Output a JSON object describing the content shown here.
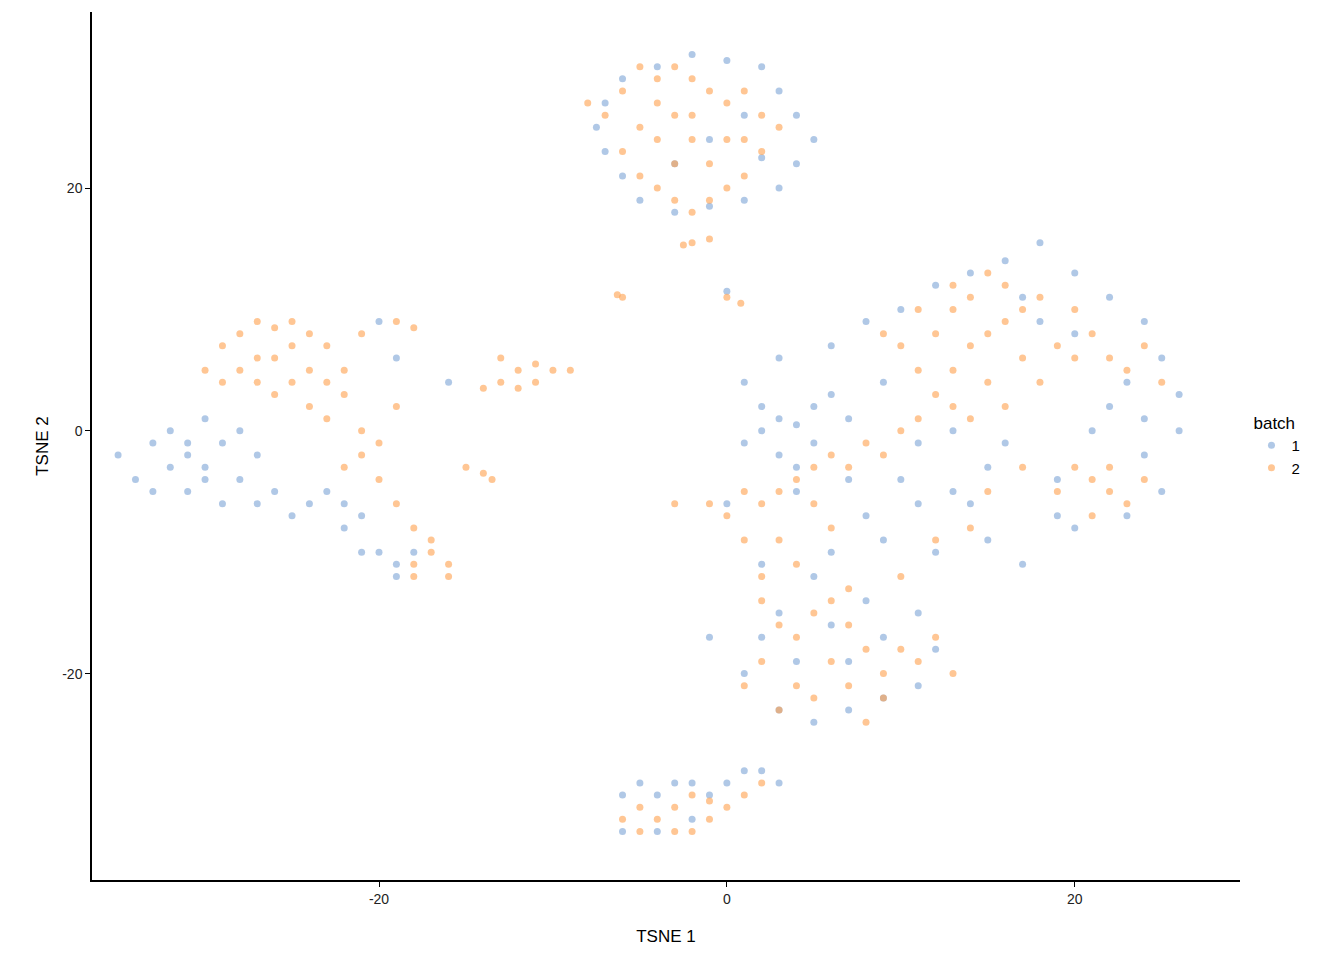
{
  "chart_data": {
    "type": "scatter",
    "x_label": "TSNE 1",
    "y_label": "TSNE 2",
    "legend_title": "batch",
    "legend": "right",
    "grid": false,
    "xlim": [
      -36.5,
      29.5
    ],
    "ylim": [
      -37,
      34.5
    ],
    "xticks": [
      -20,
      0,
      20
    ],
    "yticks": [
      -20,
      0,
      20
    ],
    "series": [
      {
        "name": "1",
        "color": "#7ba3d6",
        "marker": "circle",
        "points": [
          [
            -7,
            27
          ],
          [
            -6,
            29
          ],
          [
            -4,
            30
          ],
          [
            -2,
            31
          ],
          [
            0,
            30.5
          ],
          [
            2,
            30
          ],
          [
            3,
            28
          ],
          [
            4,
            26
          ],
          [
            5,
            24
          ],
          [
            4,
            22
          ],
          [
            3,
            20
          ],
          [
            1,
            19
          ],
          [
            -1,
            18.5
          ],
          [
            -3,
            18
          ],
          [
            -5,
            19
          ],
          [
            -6,
            21
          ],
          [
            -7,
            23
          ],
          [
            -7.5,
            25
          ],
          [
            -1,
            24
          ],
          [
            1,
            26
          ],
          [
            -3,
            22
          ],
          [
            2,
            22.5
          ],
          [
            -35,
            -2
          ],
          [
            -34,
            -4
          ],
          [
            -33,
            -1
          ],
          [
            -33,
            -5
          ],
          [
            -32,
            0
          ],
          [
            -32,
            -3
          ],
          [
            -31,
            -2
          ],
          [
            -31,
            -5
          ],
          [
            -30,
            1
          ],
          [
            -30,
            -3
          ],
          [
            -29,
            -1
          ],
          [
            -29,
            -6
          ],
          [
            -28,
            0
          ],
          [
            -28,
            -4
          ],
          [
            -27,
            -2
          ],
          [
            -27,
            -6
          ],
          [
            -26,
            -5
          ],
          [
            -25,
            -7
          ],
          [
            -24,
            -6
          ],
          [
            -23,
            -5
          ],
          [
            -22,
            -6
          ],
          [
            -22,
            -8
          ],
          [
            -21,
            -7
          ],
          [
            -20,
            -10
          ],
          [
            -19,
            -11
          ],
          [
            -18,
            -10
          ],
          [
            -19,
            -12
          ],
          [
            -21,
            -10
          ],
          [
            -20,
            9
          ],
          [
            -19,
            6
          ],
          [
            -30,
            -4
          ],
          [
            -31,
            -1
          ],
          [
            -16,
            4
          ],
          [
            0,
            11.5
          ],
          [
            0,
            -6
          ],
          [
            1,
            -1
          ],
          [
            2,
            0
          ],
          [
            3,
            1
          ],
          [
            3,
            -2
          ],
          [
            4,
            0.5
          ],
          [
            5,
            2
          ],
          [
            5,
            -1
          ],
          [
            6,
            3
          ],
          [
            2,
            2
          ],
          [
            4,
            -3
          ],
          [
            1,
            4
          ],
          [
            3,
            6
          ],
          [
            6,
            7
          ],
          [
            8,
            9
          ],
          [
            10,
            10
          ],
          [
            9,
            4
          ],
          [
            12,
            12
          ],
          [
            14,
            13
          ],
          [
            16,
            14
          ],
          [
            18,
            15.5
          ],
          [
            20,
            13
          ],
          [
            22,
            11
          ],
          [
            24,
            9
          ],
          [
            25,
            6
          ],
          [
            26,
            3
          ],
          [
            26,
            0
          ],
          [
            24,
            -2
          ],
          [
            25,
            -5
          ],
          [
            23,
            -7
          ],
          [
            20,
            -8
          ],
          [
            22,
            2
          ],
          [
            23,
            4
          ],
          [
            21,
            0
          ],
          [
            24,
            1
          ],
          [
            19,
            -4
          ],
          [
            18,
            9
          ],
          [
            20,
            8
          ],
          [
            17,
            11
          ],
          [
            15,
            -3
          ],
          [
            13,
            -5
          ],
          [
            11,
            -6
          ],
          [
            10,
            -4
          ],
          [
            8,
            -7
          ],
          [
            9,
            -9
          ],
          [
            6,
            -10
          ],
          [
            5,
            -12
          ],
          [
            3,
            -15
          ],
          [
            2,
            -17
          ],
          [
            1,
            -20
          ],
          [
            3,
            -23
          ],
          [
            5,
            -24
          ],
          [
            7,
            -23
          ],
          [
            9,
            -22
          ],
          [
            11,
            -21
          ],
          [
            12,
            -18
          ],
          [
            11,
            -15
          ],
          [
            8,
            -14
          ],
          [
            6,
            -16
          ],
          [
            4,
            -19
          ],
          [
            7,
            -19
          ],
          [
            9,
            -17
          ],
          [
            12,
            -10
          ],
          [
            15,
            -9
          ],
          [
            17,
            -11
          ],
          [
            19,
            -7
          ],
          [
            14,
            -6
          ],
          [
            7,
            -4
          ],
          [
            4,
            -5
          ],
          [
            -1,
            -17
          ],
          [
            2,
            -11
          ],
          [
            11,
            -1
          ],
          [
            13,
            0
          ],
          [
            16,
            -1
          ],
          [
            7,
            1
          ],
          [
            -6,
            -30
          ],
          [
            -5,
            -29
          ],
          [
            -4,
            -30
          ],
          [
            -6,
            -33
          ],
          [
            -3,
            -29
          ],
          [
            -2,
            -29
          ],
          [
            -1,
            -30
          ],
          [
            0,
            -29
          ],
          [
            1,
            -28
          ],
          [
            2,
            -28
          ],
          [
            3,
            -29
          ],
          [
            -4,
            -33
          ],
          [
            -2,
            -32
          ]
        ]
      },
      {
        "name": "2",
        "color": "#ffa04d",
        "marker": "circle",
        "points": [
          [
            -8,
            27
          ],
          [
            -7,
            26
          ],
          [
            -6,
            28
          ],
          [
            -5,
            30
          ],
          [
            -4,
            29
          ],
          [
            -3,
            30
          ],
          [
            -2,
            29
          ],
          [
            -1,
            28
          ],
          [
            0,
            27
          ],
          [
            1,
            28
          ],
          [
            2,
            26
          ],
          [
            3,
            25
          ],
          [
            2,
            23
          ],
          [
            1,
            21
          ],
          [
            0,
            20
          ],
          [
            -1,
            19
          ],
          [
            -2,
            18
          ],
          [
            -3,
            19
          ],
          [
            -4,
            20
          ],
          [
            -5,
            21
          ],
          [
            -6,
            23
          ],
          [
            -5,
            25
          ],
          [
            -4,
            27
          ],
          [
            -3,
            26
          ],
          [
            -2,
            24
          ],
          [
            -1,
            22
          ],
          [
            0,
            24
          ],
          [
            -3,
            22
          ],
          [
            -4,
            24
          ],
          [
            -2,
            26
          ],
          [
            1,
            24
          ],
          [
            -2,
            15.5
          ],
          [
            -1,
            15.8
          ],
          [
            -2.5,
            15.3
          ],
          [
            -6,
            11
          ],
          [
            -6.3,
            11.2
          ],
          [
            0.8,
            10.5
          ],
          [
            0,
            11
          ],
          [
            -30,
            5
          ],
          [
            -29,
            7
          ],
          [
            -28,
            8
          ],
          [
            -27,
            9
          ],
          [
            -26,
            8.5
          ],
          [
            -25,
            9
          ],
          [
            -24,
            8
          ],
          [
            -23,
            7
          ],
          [
            -22,
            5
          ],
          [
            -22,
            3
          ],
          [
            -23,
            1
          ],
          [
            -24,
            2
          ],
          [
            -25,
            4
          ],
          [
            -26,
            6
          ],
          [
            -27,
            4
          ],
          [
            -28,
            5
          ],
          [
            -29,
            4
          ],
          [
            -25,
            7
          ],
          [
            -24,
            5
          ],
          [
            -26,
            3
          ],
          [
            -27,
            6
          ],
          [
            -23,
            4
          ],
          [
            -21,
            0
          ],
          [
            -21,
            -2
          ],
          [
            -22,
            -3
          ],
          [
            -20,
            -4
          ],
          [
            -20,
            -1
          ],
          [
            -19,
            2
          ],
          [
            -21,
            8
          ],
          [
            -19,
            9
          ],
          [
            -18,
            8.5
          ],
          [
            -19,
            -6
          ],
          [
            -18,
            -8
          ],
          [
            -18,
            -11
          ],
          [
            -17,
            -10
          ],
          [
            -16,
            -11
          ],
          [
            -16,
            -12
          ],
          [
            -18,
            -12
          ],
          [
            -17,
            -9
          ],
          [
            -14,
            3.5
          ],
          [
            -13,
            4
          ],
          [
            -12,
            5
          ],
          [
            -11,
            5.5
          ],
          [
            -10,
            5
          ],
          [
            -9,
            5
          ],
          [
            -13,
            6
          ],
          [
            -11,
            4
          ],
          [
            -12,
            3.5
          ],
          [
            -15,
            -3
          ],
          [
            -14,
            -3.5
          ],
          [
            -13.5,
            -4
          ],
          [
            12,
            3
          ],
          [
            13,
            5
          ],
          [
            14,
            7
          ],
          [
            15,
            8
          ],
          [
            16,
            9
          ],
          [
            17,
            10
          ],
          [
            12,
            8
          ],
          [
            13,
            10
          ],
          [
            14,
            11
          ],
          [
            16,
            12
          ],
          [
            18,
            11
          ],
          [
            19,
            7
          ],
          [
            20,
            6
          ],
          [
            21,
            8
          ],
          [
            22,
            6
          ],
          [
            23,
            5
          ],
          [
            24,
            7
          ],
          [
            25,
            4
          ],
          [
            10,
            7
          ],
          [
            11,
            5
          ],
          [
            15,
            4
          ],
          [
            17,
            6
          ],
          [
            18,
            4
          ],
          [
            16,
            2
          ],
          [
            14,
            1
          ],
          [
            20,
            10
          ],
          [
            13,
            12
          ],
          [
            15,
            13
          ],
          [
            11,
            10
          ],
          [
            9,
            8
          ],
          [
            -3,
            -6
          ],
          [
            -1,
            -6
          ],
          [
            0,
            -7
          ],
          [
            1,
            -5
          ],
          [
            2,
            -6
          ],
          [
            3,
            -5
          ],
          [
            4,
            -4
          ],
          [
            5,
            -3
          ],
          [
            6,
            -2
          ],
          [
            7,
            -3
          ],
          [
            8,
            -1
          ],
          [
            9,
            -2
          ],
          [
            10,
            0
          ],
          [
            11,
            1
          ],
          [
            13,
            2
          ],
          [
            5,
            -6
          ],
          [
            6,
            -8
          ],
          [
            3,
            -9
          ],
          [
            1,
            -9
          ],
          [
            2,
            -12
          ],
          [
            4,
            -11
          ],
          [
            19,
            -5
          ],
          [
            20,
            -3
          ],
          [
            21,
            -4
          ],
          [
            22,
            -5
          ],
          [
            23,
            -6
          ],
          [
            21,
            -7
          ],
          [
            22,
            -3
          ],
          [
            24,
            -4
          ],
          [
            2,
            -14
          ],
          [
            3,
            -16
          ],
          [
            4,
            -17
          ],
          [
            5,
            -15
          ],
          [
            6,
            -14
          ],
          [
            7,
            -16
          ],
          [
            8,
            -18
          ],
          [
            6,
            -19
          ],
          [
            4,
            -21
          ],
          [
            2,
            -19
          ],
          [
            3,
            -23
          ],
          [
            5,
            -22
          ],
          [
            7,
            -21
          ],
          [
            9,
            -20
          ],
          [
            10,
            -18
          ],
          [
            11,
            -19
          ],
          [
            12,
            -17
          ],
          [
            9,
            -22
          ],
          [
            1,
            -21
          ],
          [
            8,
            -24
          ],
          [
            13,
            -20
          ],
          [
            7,
            -13
          ],
          [
            10,
            -12
          ],
          [
            12,
            -9
          ],
          [
            14,
            -8
          ],
          [
            15,
            -5
          ],
          [
            17,
            -3
          ],
          [
            -6,
            -32
          ],
          [
            -5,
            -31
          ],
          [
            -4,
            -32
          ],
          [
            -3,
            -33
          ],
          [
            -2,
            -33
          ],
          [
            -1,
            -32
          ],
          [
            0,
            -31
          ],
          [
            1,
            -30
          ],
          [
            2,
            -29
          ],
          [
            -5,
            -33
          ],
          [
            -3,
            -31
          ],
          [
            -2,
            -30
          ],
          [
            -1,
            -30.5
          ]
        ]
      }
    ]
  }
}
